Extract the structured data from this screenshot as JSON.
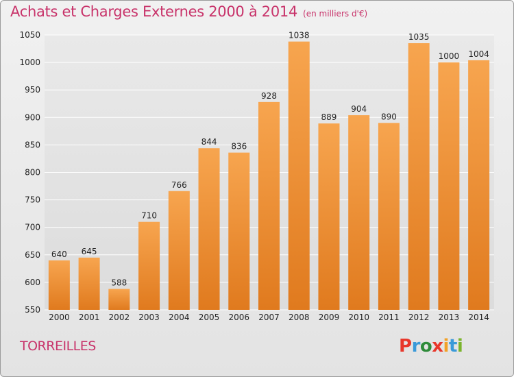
{
  "header": {
    "title": "Achats et Charges Externes 2000 à 2014",
    "unit": "(en milliers d'€)"
  },
  "footer": {
    "city": "TORREILLES",
    "logo": "Proxiti"
  },
  "colors": {
    "title": "#c8336a",
    "bar_top": "#f7a54f",
    "bar_bottom": "#e07a1e",
    "grid": "#ffffff",
    "logo_letters": [
      "#e8372b",
      "#3a9ad9",
      "#2e8b3a",
      "#e8372b",
      "#f2a127",
      "#3a9ad9",
      "#7ab42c"
    ]
  },
  "chart_data": {
    "type": "bar",
    "title": "Achats et Charges Externes 2000 à 2014",
    "subtitle": "(en milliers d'€)",
    "categories": [
      "2000",
      "2001",
      "2002",
      "2003",
      "2004",
      "2005",
      "2006",
      "2007",
      "2008",
      "2009",
      "2010",
      "2011",
      "2012",
      "2013",
      "2014"
    ],
    "values": [
      640,
      645,
      588,
      710,
      766,
      844,
      836,
      928,
      1038,
      889,
      904,
      890,
      1035,
      1000,
      1004
    ],
    "ylim": [
      550,
      1050
    ],
    "yticks": [
      550,
      600,
      650,
      700,
      750,
      800,
      850,
      900,
      950,
      1000,
      1050
    ],
    "grid": true,
    "xlabel": "",
    "ylabel": ""
  }
}
